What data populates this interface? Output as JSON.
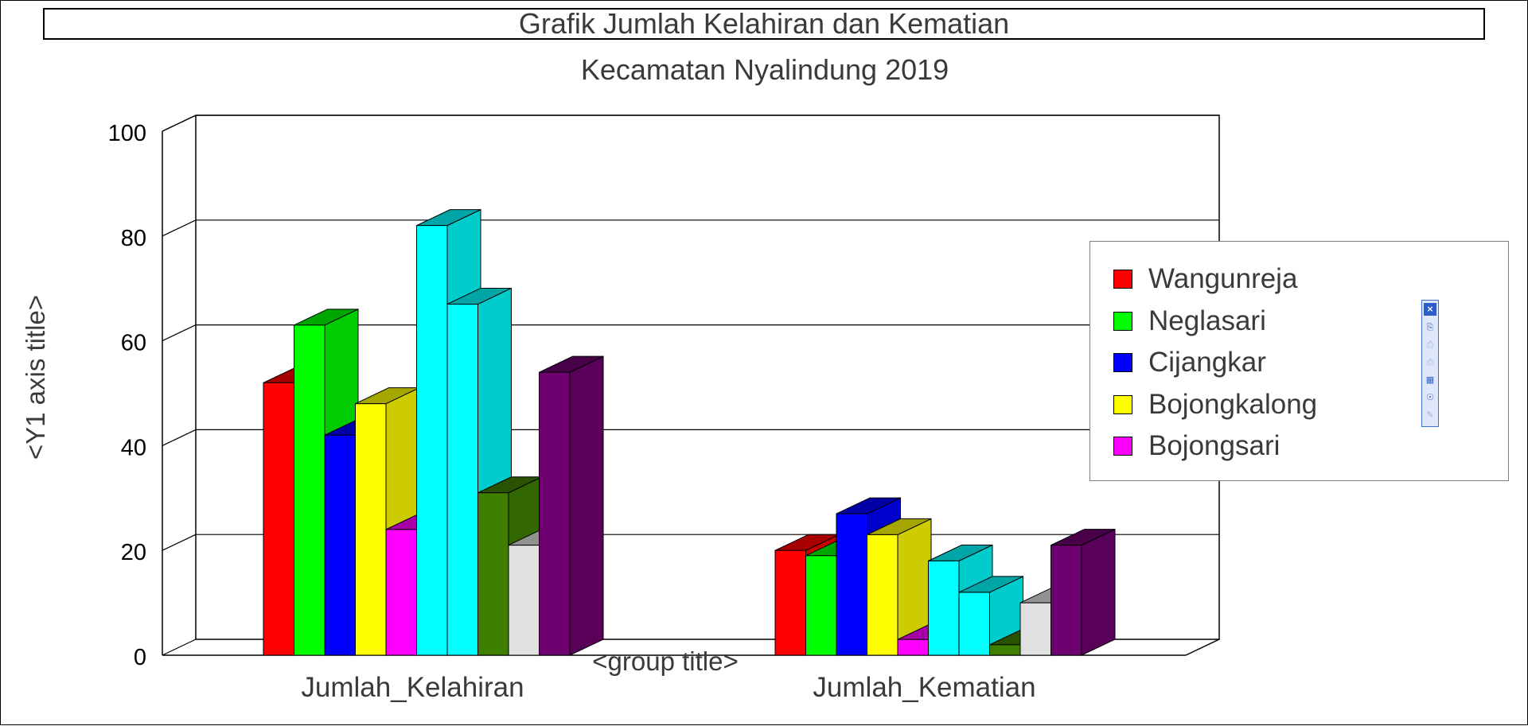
{
  "chart_data": {
    "type": "bar",
    "variant": "3d-clustered",
    "title": "Grafik Jumlah Kelahiran dan Kematian",
    "subtitle": "Kecamatan Nyalindung 2019",
    "ylabel": "<Y1 axis title>",
    "xlabel": "<group title>",
    "ylim": [
      0,
      100
    ],
    "yticks": [
      0,
      20,
      40,
      60,
      80,
      100
    ],
    "grid": true,
    "legend_position": "right",
    "categories": [
      "Jumlah_Kelahiran",
      "Jumlah_Kematian"
    ],
    "series": [
      {
        "name": "Wangunreja",
        "color": "#ff0000",
        "values": [
          52,
          20
        ]
      },
      {
        "name": "Neglasari",
        "color": "#00ff00",
        "values": [
          63,
          19
        ]
      },
      {
        "name": "Cijangkar",
        "color": "#0000ff",
        "values": [
          42,
          27
        ]
      },
      {
        "name": "Bojongkalong",
        "color": "#ffff00",
        "values": [
          48,
          23
        ]
      },
      {
        "name": "Bojongsari",
        "color": "#ff00ff",
        "values": [
          24,
          3
        ]
      },
      {
        "color": "#00ffff",
        "values": [
          82,
          18
        ]
      },
      {
        "color": "#00ffff",
        "values": [
          67,
          12
        ]
      },
      {
        "color": "#3f7f00",
        "values": [
          31,
          2
        ]
      },
      {
        "color": "#e0e0e0",
        "values": [
          21,
          10
        ]
      },
      {
        "color": "#6f006f",
        "values": [
          54,
          21
        ]
      }
    ]
  },
  "toolbar": {
    "close_glyph": "×",
    "icons": [
      "copy-icon",
      "print-icon",
      "print-preview-icon",
      "export-icon",
      "globe-icon",
      "edit-icon"
    ]
  }
}
